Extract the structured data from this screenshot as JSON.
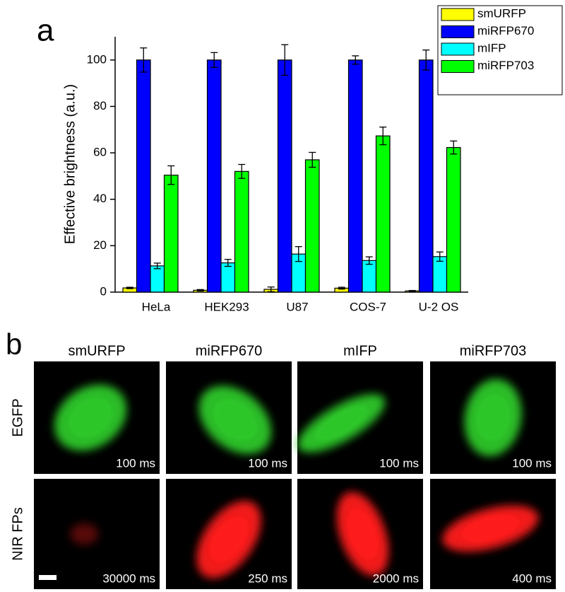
{
  "chart_data": {
    "type": "bar",
    "panel_label": "a",
    "y_label": "Effective brightness (a.u.)",
    "categories": [
      "HeLa",
      "HEK293",
      "U87",
      "COS-7",
      "U-2 OS"
    ],
    "series": [
      {
        "name": "smURFP",
        "color": "#ffff00",
        "values": [
          1.8,
          0.8,
          1.2,
          1.7,
          0.5
        ],
        "errors": [
          0.3,
          0.3,
          1.0,
          0.4,
          0.2
        ]
      },
      {
        "name": "miRFP670",
        "color": "#0000ff",
        "values": [
          100,
          100,
          100,
          100,
          100
        ],
        "errors": [
          5.2,
          3.2,
          6.6,
          1.8,
          4.3
        ]
      },
      {
        "name": "mIFP",
        "color": "#00ffff",
        "values": [
          11.3,
          12.6,
          16.4,
          13.6,
          15.3
        ],
        "errors": [
          1.2,
          1.5,
          3.2,
          1.6,
          2.0
        ]
      },
      {
        "name": "miRFP703",
        "color": "#00ff00",
        "values": [
          50.4,
          52.0,
          57.0,
          67.3,
          62.3
        ],
        "errors": [
          4.0,
          3.0,
          3.2,
          3.8,
          2.8
        ]
      }
    ],
    "ylim": [
      0,
      110
    ],
    "yticks": [
      0,
      20,
      40,
      60,
      80,
      100
    ],
    "legend": "top-right"
  },
  "panel_b": {
    "label": "b",
    "columns": [
      "smURFP",
      "miRFP670",
      "mIFP",
      "miRFP703"
    ],
    "rows": [
      "EGFP",
      "NIR FPs"
    ],
    "exposures": [
      [
        "100 ms",
        "100 ms",
        "100 ms",
        "100 ms"
      ],
      [
        "30000 ms",
        "250 ms",
        "2000 ms",
        "400 ms"
      ]
    ]
  }
}
